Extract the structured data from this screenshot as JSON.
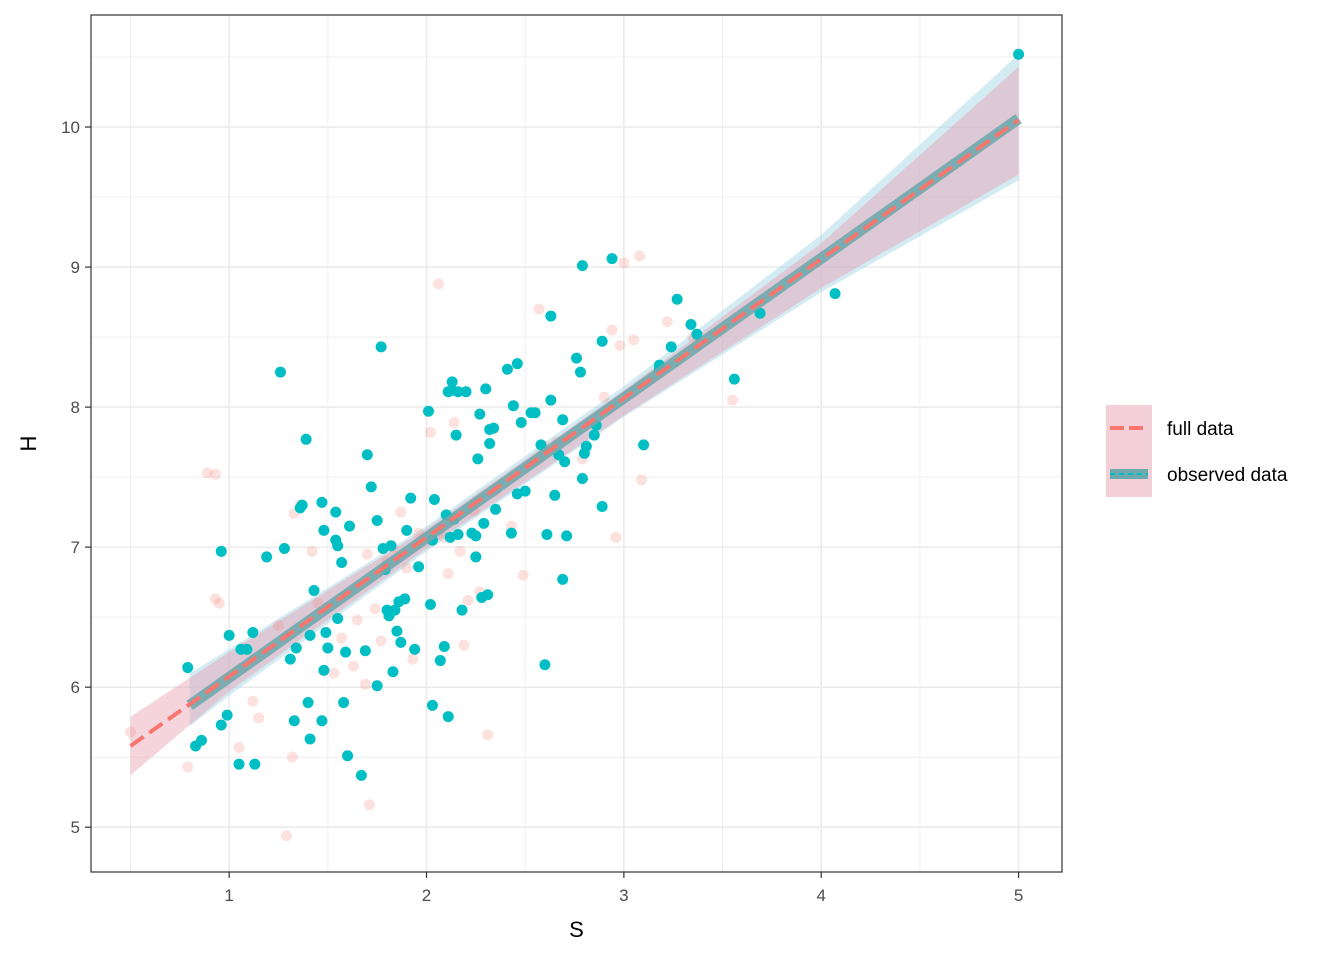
{
  "chart_data": {
    "type": "scatter",
    "xlabel": "S",
    "ylabel": "H",
    "xlim": [
      0.3,
      5.22
    ],
    "ylim": [
      4.68,
      10.8
    ],
    "x_ticks": [
      1,
      2,
      3,
      4,
      5
    ],
    "y_ticks": [
      5,
      6,
      7,
      8,
      9,
      10
    ],
    "x_tick_labels": [
      "1",
      "2",
      "3",
      "4",
      "5"
    ],
    "y_tick_labels": [
      "5",
      "6",
      "7",
      "8",
      "9",
      "10"
    ],
    "grid": true,
    "legend_position": "right",
    "colors": {
      "full": "#F8766D",
      "observed": "#00BFC4",
      "full_band": "#E8A0B2",
      "observed_band": "#A8D8E8",
      "grid_major": "#EBEBEB",
      "panel_border": "#333333"
    },
    "series": [
      {
        "name": "full data",
        "line": {
          "x0": 0.5,
          "y0": 5.58,
          "x1": 5.0,
          "y1": 10.05
        },
        "band": {
          "x": [
            0.5,
            1.0,
            2.0,
            3.0,
            4.0,
            5.0
          ],
          "lower": [
            5.37,
            5.97,
            6.99,
            7.94,
            8.85,
            9.66
          ],
          "upper": [
            5.79,
            6.25,
            7.13,
            8.12,
            9.17,
            10.43
          ]
        },
        "points": [
          [
            0.5,
            5.68
          ],
          [
            0.79,
            5.43
          ],
          [
            0.89,
            7.53
          ],
          [
            0.93,
            7.52
          ],
          [
            0.93,
            6.63
          ],
          [
            0.95,
            6.6
          ],
          [
            1.05,
            5.57
          ],
          [
            1.07,
            6.28
          ],
          [
            1.12,
            5.9
          ],
          [
            1.15,
            5.78
          ],
          [
            1.25,
            6.44
          ],
          [
            1.29,
            4.94
          ],
          [
            1.32,
            5.5
          ],
          [
            1.33,
            7.24
          ],
          [
            1.36,
            7.3
          ],
          [
            1.42,
            6.97
          ],
          [
            1.45,
            6.6
          ],
          [
            1.53,
            6.1
          ],
          [
            1.57,
            6.35
          ],
          [
            1.63,
            6.15
          ],
          [
            1.65,
            6.48
          ],
          [
            1.69,
            6.02
          ],
          [
            1.7,
            6.95
          ],
          [
            1.71,
            5.16
          ],
          [
            1.74,
            6.56
          ],
          [
            1.77,
            6.33
          ],
          [
            1.8,
            6.9
          ],
          [
            1.83,
            7.0
          ],
          [
            1.87,
            7.25
          ],
          [
            1.9,
            6.85
          ],
          [
            1.93,
            6.2
          ],
          [
            1.96,
            7.1
          ],
          [
            2.02,
            7.82
          ],
          [
            2.06,
            8.88
          ],
          [
            2.09,
            7.07
          ],
          [
            2.11,
            6.81
          ],
          [
            2.14,
            7.89
          ],
          [
            2.17,
            6.97
          ],
          [
            2.19,
            6.3
          ],
          [
            2.21,
            6.62
          ],
          [
            2.24,
            7.26
          ],
          [
            2.27,
            6.68
          ],
          [
            2.31,
            5.66
          ],
          [
            2.35,
            7.4
          ],
          [
            2.43,
            7.15
          ],
          [
            2.49,
            6.8
          ],
          [
            2.57,
            8.7
          ],
          [
            2.6,
            7.72
          ],
          [
            2.66,
            7.75
          ],
          [
            2.79,
            7.63
          ],
          [
            2.9,
            8.07
          ],
          [
            2.94,
            8.55
          ],
          [
            2.96,
            7.07
          ],
          [
            2.98,
            8.44
          ],
          [
            3.0,
            9.03
          ],
          [
            3.05,
            8.48
          ],
          [
            3.08,
            9.08
          ],
          [
            3.09,
            7.48
          ],
          [
            3.22,
            8.61
          ],
          [
            3.35,
            8.5
          ],
          [
            3.55,
            8.05
          ]
        ]
      },
      {
        "name": "observed data",
        "line": {
          "x0": 0.8,
          "y0": 5.87,
          "x1": 5.0,
          "y1": 10.06
        },
        "band": {
          "x": [
            0.8,
            1.0,
            2.0,
            3.0,
            4.0,
            5.0
          ],
          "lower": [
            5.72,
            5.94,
            6.97,
            7.93,
            8.82,
            9.62
          ],
          "upper": [
            6.1,
            6.27,
            7.15,
            8.15,
            9.23,
            10.52
          ]
        },
        "points": [
          [
            0.79,
            6.14
          ],
          [
            0.83,
            5.58
          ],
          [
            0.86,
            5.62
          ],
          [
            0.96,
            6.97
          ],
          [
            0.96,
            5.73
          ],
          [
            0.99,
            5.8
          ],
          [
            1.0,
            6.37
          ],
          [
            1.05,
            5.45
          ],
          [
            1.06,
            6.27
          ],
          [
            1.09,
            6.27
          ],
          [
            1.12,
            6.39
          ],
          [
            1.13,
            5.45
          ],
          [
            1.19,
            6.93
          ],
          [
            1.26,
            8.25
          ],
          [
            1.28,
            6.99
          ],
          [
            1.31,
            6.2
          ],
          [
            1.33,
            5.76
          ],
          [
            1.34,
            6.28
          ],
          [
            1.36,
            7.28
          ],
          [
            1.37,
            7.3
          ],
          [
            1.39,
            7.77
          ],
          [
            1.4,
            5.89
          ],
          [
            1.41,
            6.37
          ],
          [
            1.41,
            5.63
          ],
          [
            1.43,
            6.69
          ],
          [
            1.47,
            7.32
          ],
          [
            1.47,
            5.76
          ],
          [
            1.48,
            7.12
          ],
          [
            1.48,
            6.12
          ],
          [
            1.49,
            6.39
          ],
          [
            1.5,
            6.28
          ],
          [
            1.54,
            7.05
          ],
          [
            1.54,
            7.25
          ],
          [
            1.55,
            7.01
          ],
          [
            1.55,
            6.49
          ],
          [
            1.57,
            6.89
          ],
          [
            1.58,
            5.89
          ],
          [
            1.59,
            6.25
          ],
          [
            1.6,
            5.51
          ],
          [
            1.61,
            7.15
          ],
          [
            1.67,
            5.37
          ],
          [
            1.69,
            6.26
          ],
          [
            1.7,
            7.66
          ],
          [
            1.72,
            7.43
          ],
          [
            1.75,
            7.19
          ],
          [
            1.75,
            6.01
          ],
          [
            1.77,
            8.43
          ],
          [
            1.78,
            6.99
          ],
          [
            1.79,
            6.84
          ],
          [
            1.8,
            6.55
          ],
          [
            1.81,
            6.51
          ],
          [
            1.82,
            7.01
          ],
          [
            1.83,
            6.11
          ],
          [
            1.84,
            6.55
          ],
          [
            1.85,
            6.4
          ],
          [
            1.86,
            6.61
          ],
          [
            1.87,
            6.32
          ],
          [
            1.89,
            6.63
          ],
          [
            1.9,
            7.12
          ],
          [
            1.92,
            7.35
          ],
          [
            1.94,
            6.27
          ],
          [
            1.96,
            6.86
          ],
          [
            2.01,
            7.97
          ],
          [
            2.02,
            6.59
          ],
          [
            2.03,
            5.87
          ],
          [
            2.03,
            7.05
          ],
          [
            2.04,
            7.34
          ],
          [
            2.07,
            6.19
          ],
          [
            2.09,
            6.29
          ],
          [
            2.1,
            7.23
          ],
          [
            2.11,
            8.11
          ],
          [
            2.11,
            5.79
          ],
          [
            2.12,
            7.07
          ],
          [
            2.13,
            8.12
          ],
          [
            2.13,
            8.18
          ],
          [
            2.14,
            7.2
          ],
          [
            2.15,
            7.8
          ],
          [
            2.16,
            7.09
          ],
          [
            2.16,
            8.11
          ],
          [
            2.18,
            6.55
          ],
          [
            2.2,
            8.11
          ],
          [
            2.23,
            7.1
          ],
          [
            2.25,
            7.08
          ],
          [
            2.25,
            6.93
          ],
          [
            2.26,
            7.63
          ],
          [
            2.27,
            7.95
          ],
          [
            2.28,
            6.64
          ],
          [
            2.29,
            7.17
          ],
          [
            2.3,
            8.13
          ],
          [
            2.31,
            6.66
          ],
          [
            2.32,
            7.84
          ],
          [
            2.32,
            7.74
          ],
          [
            2.34,
            7.85
          ],
          [
            2.35,
            7.27
          ],
          [
            2.41,
            8.27
          ],
          [
            2.43,
            7.1
          ],
          [
            2.44,
            8.01
          ],
          [
            2.46,
            8.31
          ],
          [
            2.46,
            7.38
          ],
          [
            2.48,
            7.89
          ],
          [
            2.5,
            7.4
          ],
          [
            2.53,
            7.96
          ],
          [
            2.55,
            7.96
          ],
          [
            2.58,
            7.73
          ],
          [
            2.6,
            6.16
          ],
          [
            2.61,
            7.09
          ],
          [
            2.63,
            8.65
          ],
          [
            2.63,
            8.05
          ],
          [
            2.65,
            7.37
          ],
          [
            2.67,
            7.66
          ],
          [
            2.69,
            7.91
          ],
          [
            2.69,
            6.77
          ],
          [
            2.7,
            7.61
          ],
          [
            2.71,
            7.08
          ],
          [
            2.76,
            8.35
          ],
          [
            2.78,
            8.25
          ],
          [
            2.79,
            7.49
          ],
          [
            2.79,
            9.01
          ],
          [
            2.8,
            7.67
          ],
          [
            2.81,
            7.72
          ],
          [
            2.85,
            7.8
          ],
          [
            2.86,
            7.87
          ],
          [
            2.89,
            8.47
          ],
          [
            2.89,
            7.29
          ],
          [
            2.94,
            9.06
          ],
          [
            3.1,
            7.73
          ],
          [
            3.18,
            8.27
          ],
          [
            3.18,
            8.3
          ],
          [
            3.24,
            8.43
          ],
          [
            3.27,
            8.77
          ],
          [
            3.34,
            8.59
          ],
          [
            3.37,
            8.52
          ],
          [
            3.56,
            8.2
          ],
          [
            3.69,
            8.67
          ],
          [
            4.07,
            8.81
          ],
          [
            5.0,
            10.52
          ]
        ]
      }
    ]
  }
}
